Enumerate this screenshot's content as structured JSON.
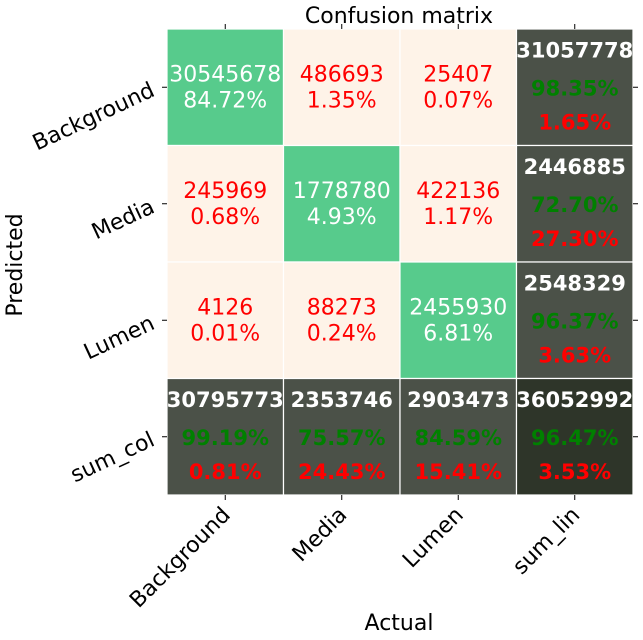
{
  "chart_data": {
    "type": "heatmap",
    "title": "Confusion matrix",
    "xlabel": "Actual",
    "ylabel": "Predicted",
    "x_categories": [
      "Background",
      "Media",
      "Lumen",
      "sum_lin"
    ],
    "y_categories": [
      "Background",
      "Media",
      "Lumen",
      "sum_col"
    ],
    "cells": [
      [
        {
          "value": "30545678",
          "pct": "84.72%"
        },
        {
          "value": "486693",
          "pct": "1.35%"
        },
        {
          "value": "25407",
          "pct": "0.07%"
        },
        {
          "value": "31057778",
          "good": "98.35%",
          "bad": "1.65%"
        }
      ],
      [
        {
          "value": "245969",
          "pct": "0.68%"
        },
        {
          "value": "1778780",
          "pct": "4.93%"
        },
        {
          "value": "422136",
          "pct": "1.17%"
        },
        {
          "value": "2446885",
          "good": "72.70%",
          "bad": "27.30%"
        }
      ],
      [
        {
          "value": "4126",
          "pct": "0.01%"
        },
        {
          "value": "88273",
          "pct": "0.24%"
        },
        {
          "value": "2455930",
          "pct": "6.81%"
        },
        {
          "value": "2548329",
          "good": "96.37%",
          "bad": "3.63%"
        }
      ],
      [
        {
          "value": "30795773",
          "good": "99.19%",
          "bad": "0.81%"
        },
        {
          "value": "2353746",
          "good": "75.57%",
          "bad": "24.43%"
        },
        {
          "value": "2903473",
          "good": "84.59%",
          "bad": "15.41%"
        },
        {
          "value": "36052992",
          "good": "96.47%",
          "bad": "3.53%"
        }
      ]
    ],
    "colors": {
      "diagonal": "#57cb8c",
      "off_diagonal": "#fef3e8",
      "summary": "#4b5148",
      "summary_total": "#2e3529",
      "good_text": "#008000",
      "bad_text": "#ff0000",
      "light_text": "#ffffff"
    },
    "grid": false
  }
}
